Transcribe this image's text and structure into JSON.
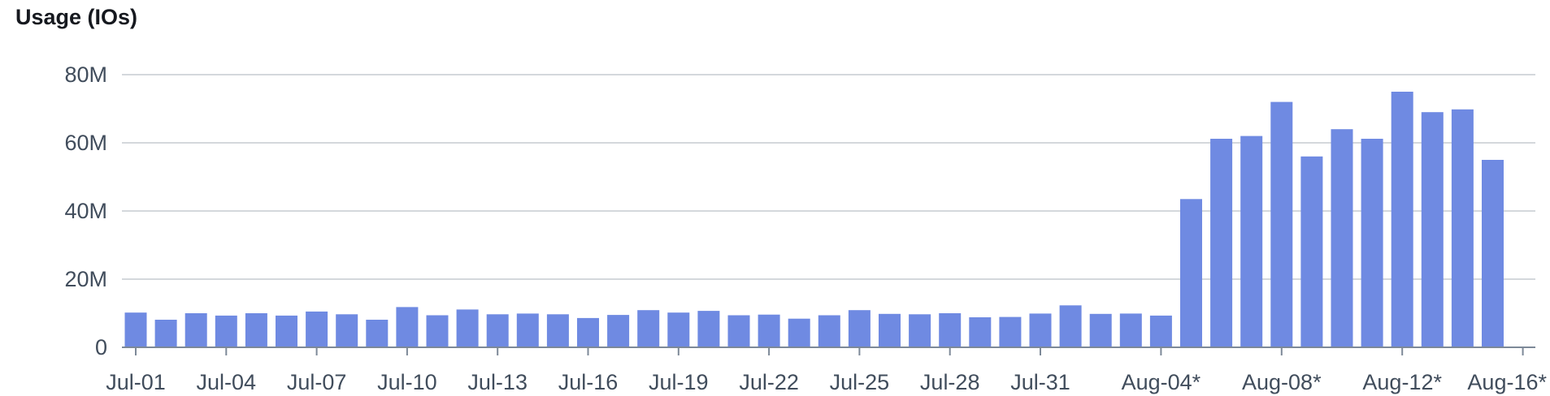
{
  "chart_data": {
    "type": "bar",
    "title": "Usage (IOs)",
    "xlabel": "",
    "ylabel": "",
    "ylim": [
      0,
      80000000
    ],
    "yticks": [
      {
        "value": 0,
        "label": "0"
      },
      {
        "value": 20000000,
        "label": "20M"
      },
      {
        "value": 40000000,
        "label": "40M"
      },
      {
        "value": 60000000,
        "label": "60M"
      },
      {
        "value": 80000000,
        "label": "80M"
      }
    ],
    "categories": [
      "Jul-01",
      "Jul-02",
      "Jul-03",
      "Jul-04",
      "Jul-05",
      "Jul-06",
      "Jul-07",
      "Jul-08",
      "Jul-09",
      "Jul-10",
      "Jul-11",
      "Jul-12",
      "Jul-13",
      "Jul-14",
      "Jul-15",
      "Jul-16",
      "Jul-17",
      "Jul-18",
      "Jul-19",
      "Jul-20",
      "Jul-21",
      "Jul-22",
      "Jul-23",
      "Jul-24",
      "Jul-25",
      "Jul-26",
      "Jul-27",
      "Jul-28",
      "Jul-29",
      "Jul-30",
      "Jul-31",
      "Aug-01",
      "Aug-02",
      "Aug-03",
      "Aug-04*",
      "Aug-05*",
      "Aug-06*",
      "Aug-07*",
      "Aug-08*",
      "Aug-09*",
      "Aug-10*",
      "Aug-11*",
      "Aug-12*",
      "Aug-13*",
      "Aug-14*",
      "Aug-15*"
    ],
    "tick_labels": [
      {
        "index": 0,
        "label": "Jul-01"
      },
      {
        "index": 3,
        "label": "Jul-04"
      },
      {
        "index": 6,
        "label": "Jul-07"
      },
      {
        "index": 9,
        "label": "Jul-10"
      },
      {
        "index": 12,
        "label": "Jul-13"
      },
      {
        "index": 15,
        "label": "Jul-16"
      },
      {
        "index": 18,
        "label": "Jul-19"
      },
      {
        "index": 21,
        "label": "Jul-22"
      },
      {
        "index": 24,
        "label": "Jul-25"
      },
      {
        "index": 27,
        "label": "Jul-28"
      },
      {
        "index": 30,
        "label": "Jul-31"
      },
      {
        "index": 34,
        "label": "Aug-04*"
      },
      {
        "index": 38,
        "label": "Aug-08*"
      },
      {
        "index": 42,
        "label": "Aug-12*"
      },
      {
        "index": 46,
        "label": "Aug-16*"
      }
    ],
    "series": [
      {
        "values": [
          10200000,
          8100000,
          10000000,
          9300000,
          10000000,
          9300000,
          10500000,
          9700000,
          8100000,
          11800000,
          9400000,
          11100000,
          9700000,
          9900000,
          9700000,
          8600000,
          9500000,
          10900000,
          10200000,
          10700000,
          9400000,
          9600000,
          8400000,
          9400000,
          10900000,
          9800000,
          9700000,
          10000000,
          8800000,
          8900000,
          9900000,
          12300000,
          9800000,
          9900000,
          9300000,
          43500000,
          61200000,
          62000000,
          72000000,
          56000000,
          64000000,
          61200000,
          75000000,
          69000000,
          69800000,
          55000000
        ],
        "color": "#6f8ae2"
      }
    ],
    "grid": true,
    "legend": "none"
  }
}
